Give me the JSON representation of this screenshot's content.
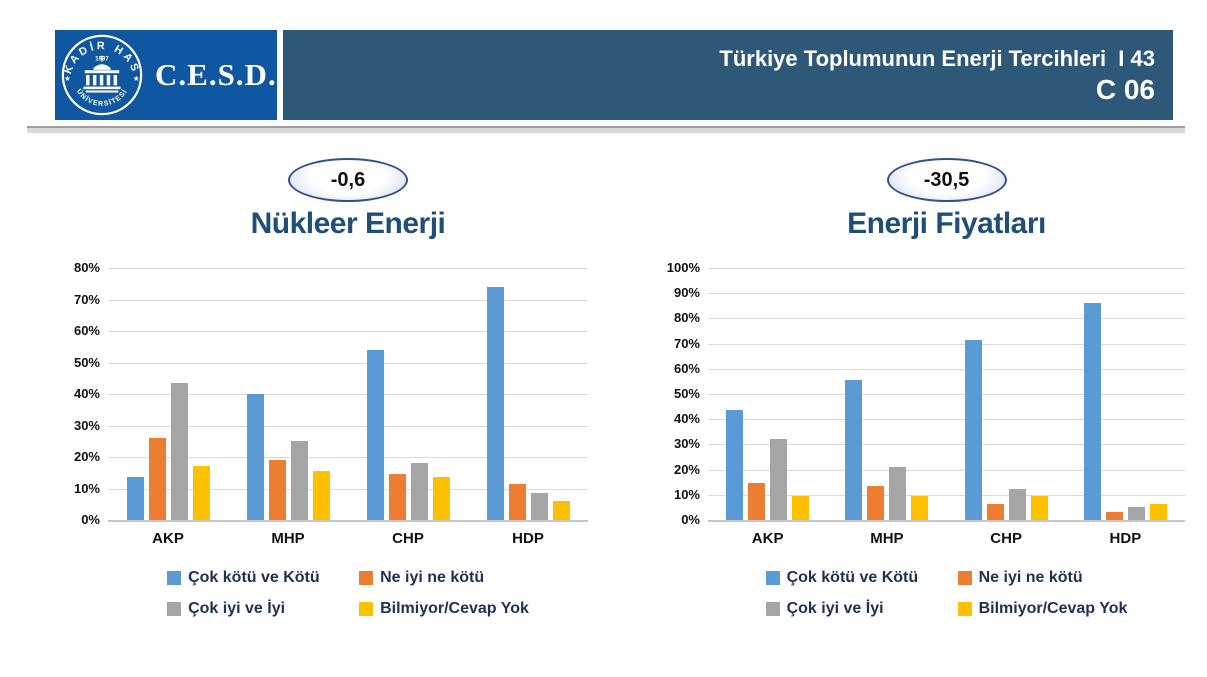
{
  "header": {
    "logo": {
      "ring_text_top": "KADİR HAS",
      "year": "1997",
      "ring_text_bottom": "ÜNİVERSİTESİ",
      "star": "★"
    },
    "org_abbrev": "C.E.S.D.",
    "title_line": "Türkiye Toplumunun Enerji Tercihleri  I 43",
    "code": "C 06",
    "left_box_color": "#0F57A0",
    "right_box_color": "#2E5878"
  },
  "colors": {
    "series_blue": "#5B9BD5",
    "series_orange": "#ED7D31",
    "series_gray": "#A5A5A5",
    "series_yellow": "#FFC000",
    "chart_title_text": "#1F4E79",
    "axis_text": "#111111",
    "legend_text": "#1F3050",
    "gridline": "#D9D9D9"
  },
  "chart_data": [
    {
      "type": "bar",
      "badge": "-0,6",
      "title": "Nükleer Enerji",
      "categories": [
        "AKP",
        "MHP",
        "CHP",
        "HDP"
      ],
      "series": [
        {
          "name": "Çok kötü ve Kötü",
          "color": "#5B9BD5",
          "values": [
            13.5,
            40,
            54,
            74
          ]
        },
        {
          "name": "Ne iyi ne kötü",
          "color": "#ED7D31",
          "values": [
            26,
            19,
            14.5,
            11.5
          ]
        },
        {
          "name": "Çok iyi ve İyi",
          "color": "#A5A5A5",
          "values": [
            43.5,
            25,
            18,
            8.5
          ]
        },
        {
          "name": "Bilmiyor/Cevap Yok",
          "color": "#FFC000",
          "values": [
            17,
            15.5,
            13.5,
            6
          ]
        }
      ],
      "ylim": [
        0,
        80
      ],
      "ytick_step": 10,
      "ytick_labels": [
        "0%",
        "10%",
        "20%",
        "30%",
        "40%",
        "50%",
        "60%",
        "70%",
        "80%"
      ],
      "grid": true,
      "legend_position": "bottom"
    },
    {
      "type": "bar",
      "badge": "-30,5",
      "title": "Enerji Fiyatları",
      "categories": [
        "AKP",
        "MHP",
        "CHP",
        "HDP"
      ],
      "series": [
        {
          "name": "Çok kötü ve Kötü",
          "color": "#5B9BD5",
          "values": [
            43.5,
            55.5,
            71.5,
            86
          ]
        },
        {
          "name": "Ne iyi ne kötü",
          "color": "#ED7D31",
          "values": [
            14.5,
            13.5,
            6.5,
            3
          ]
        },
        {
          "name": "Çok iyi ve İyi",
          "color": "#A5A5A5",
          "values": [
            32,
            21,
            12.5,
            5
          ]
        },
        {
          "name": "Bilmiyor/Cevap Yok",
          "color": "#FFC000",
          "values": [
            9.5,
            9.5,
            9.5,
            6.5
          ]
        }
      ],
      "ylim": [
        0,
        100
      ],
      "ytick_step": 10,
      "ytick_labels": [
        "0%",
        "10%",
        "20%",
        "30%",
        "40%",
        "50%",
        "60%",
        "70%",
        "80%",
        "90%",
        "100%"
      ],
      "grid": true,
      "legend_position": "bottom"
    }
  ]
}
